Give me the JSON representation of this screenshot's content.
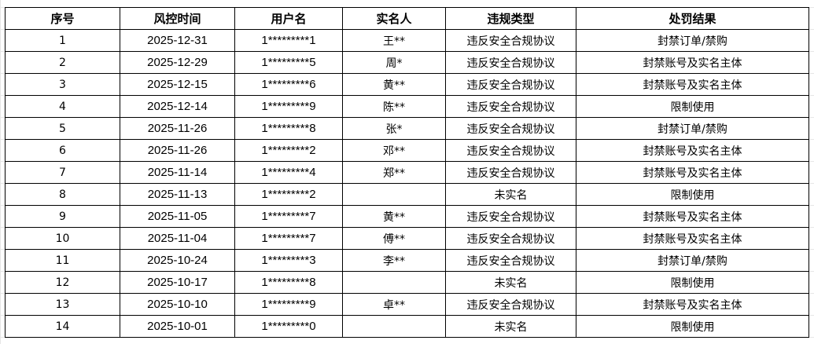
{
  "headers": [
    "序号",
    "风控时间",
    "用户名",
    "实名人",
    "违规类型",
    "处罚结果"
  ],
  "rows": [
    [
      "1",
      "2025-12-31",
      "1*********1",
      "王**",
      "违反安全合规协议",
      "封禁订单/禁购"
    ],
    [
      "2",
      "2025-12-29",
      "1*********5",
      "周*",
      "违反安全合规协议",
      "封禁账号及实名主体"
    ],
    [
      "3",
      "2025-12-15",
      "1*********6",
      "黄**",
      "违反安全合规协议",
      "封禁账号及实名主体"
    ],
    [
      "4",
      "2025-12-14",
      "1*********9",
      "陈**",
      "违反安全合规协议",
      "限制使用"
    ],
    [
      "5",
      "2025-11-26",
      "1*********8",
      "张*",
      "违反安全合规协议",
      "封禁订单/禁购"
    ],
    [
      "6",
      "2025-11-26",
      "1*********2",
      "邓**",
      "违反安全合规协议",
      "封禁账号及实名主体"
    ],
    [
      "7",
      "2025-11-14",
      "1*********4",
      "郑**",
      "违反安全合规协议",
      "封禁账号及实名主体"
    ],
    [
      "8",
      "2025-11-13",
      "1*********2",
      "",
      "未实名",
      "限制使用"
    ],
    [
      "9",
      "2025-11-05",
      "1*********7",
      "黄**",
      "违反安全合规协议",
      "封禁账号及实名主体"
    ],
    [
      "10",
      "2025-11-04",
      "1*********7",
      "傅**",
      "违反安全合规协议",
      "封禁账号及实名主体"
    ],
    [
      "11",
      "2025-10-24",
      "1*********3",
      "李**",
      "违反安全合规协议",
      "封禁订单/禁购"
    ],
    [
      "12",
      "2025-10-17",
      "1*********8",
      "",
      "未实名",
      "限制使用"
    ],
    [
      "13",
      "2025-10-10",
      "1*********9",
      "卓**",
      "违反安全合规协议",
      "封禁账号及实名主体"
    ],
    [
      "14",
      "2025-10-01",
      "1*********0",
      "",
      "未实名",
      "限制使用"
    ]
  ]
}
